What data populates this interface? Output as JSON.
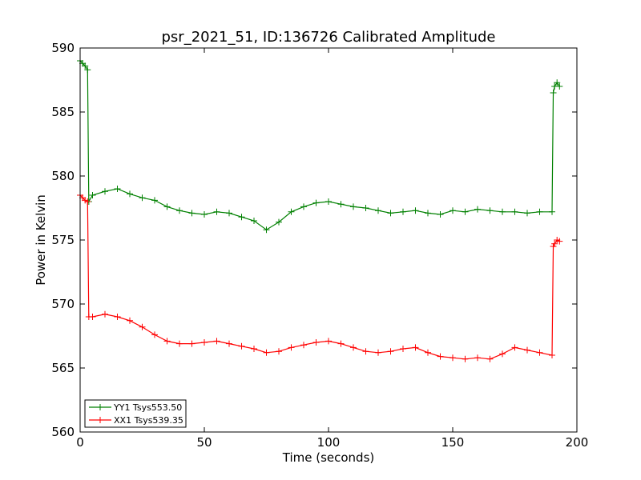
{
  "chart_data": {
    "type": "line",
    "title": "psr_2021_51, ID:136726 Calibrated Amplitude",
    "xlabel": "Time (seconds)",
    "ylabel": "Power in Kelvin",
    "xlim": [
      0,
      200
    ],
    "ylim": [
      560,
      590
    ],
    "xticks": [
      0,
      50,
      100,
      150,
      200
    ],
    "yticks": [
      560,
      565,
      570,
      575,
      580,
      585,
      590
    ],
    "grid": false,
    "legend_position": "lower-left",
    "marker": "+",
    "series": [
      {
        "name": "YY1 Tsys553.50",
        "color": "#008000",
        "x": [
          0,
          1,
          2,
          3,
          3.5,
          5,
          10,
          15,
          20,
          25,
          30,
          35,
          40,
          45,
          50,
          55,
          60,
          65,
          70,
          75,
          80,
          85,
          90,
          95,
          100,
          105,
          110,
          115,
          120,
          125,
          130,
          135,
          140,
          145,
          150,
          155,
          160,
          165,
          170,
          175,
          180,
          185,
          190,
          190.5,
          191,
          192,
          193
        ],
        "values": [
          589,
          588.8,
          588.6,
          588.3,
          578,
          578.5,
          578.8,
          579,
          578.6,
          578.3,
          578.1,
          577.6,
          577.3,
          577.1,
          577,
          577.2,
          577.1,
          576.8,
          576.5,
          575.8,
          576.4,
          577.2,
          577.6,
          577.9,
          578,
          577.8,
          577.6,
          577.5,
          577.3,
          577.1,
          577.2,
          577.3,
          577.1,
          577,
          577.3,
          577.2,
          577.4,
          577.3,
          577.2,
          577.2,
          577.1,
          577.2,
          577.2,
          586.5,
          587,
          587.3,
          587
        ]
      },
      {
        "name": "XX1 Tsys539.35",
        "color": "#ff0000",
        "x": [
          0,
          1,
          2,
          3,
          3.5,
          5,
          10,
          15,
          20,
          25,
          30,
          35,
          40,
          45,
          50,
          55,
          60,
          65,
          70,
          75,
          80,
          85,
          90,
          95,
          100,
          105,
          110,
          115,
          120,
          125,
          130,
          135,
          140,
          145,
          150,
          155,
          160,
          165,
          170,
          175,
          180,
          185,
          190,
          190.5,
          191,
          192,
          193
        ],
        "values": [
          578.5,
          578.3,
          578.1,
          578,
          569,
          569,
          569.2,
          569,
          568.7,
          568.2,
          567.6,
          567.1,
          566.9,
          566.9,
          567,
          567.1,
          566.9,
          566.7,
          566.5,
          566.2,
          566.3,
          566.6,
          566.8,
          567,
          567.1,
          566.9,
          566.6,
          566.3,
          566.2,
          566.3,
          566.5,
          566.6,
          566.2,
          565.9,
          565.8,
          565.7,
          565.8,
          565.7,
          566.1,
          566.6,
          566.4,
          566.2,
          566,
          574.5,
          574.7,
          575,
          574.9
        ]
      }
    ]
  }
}
